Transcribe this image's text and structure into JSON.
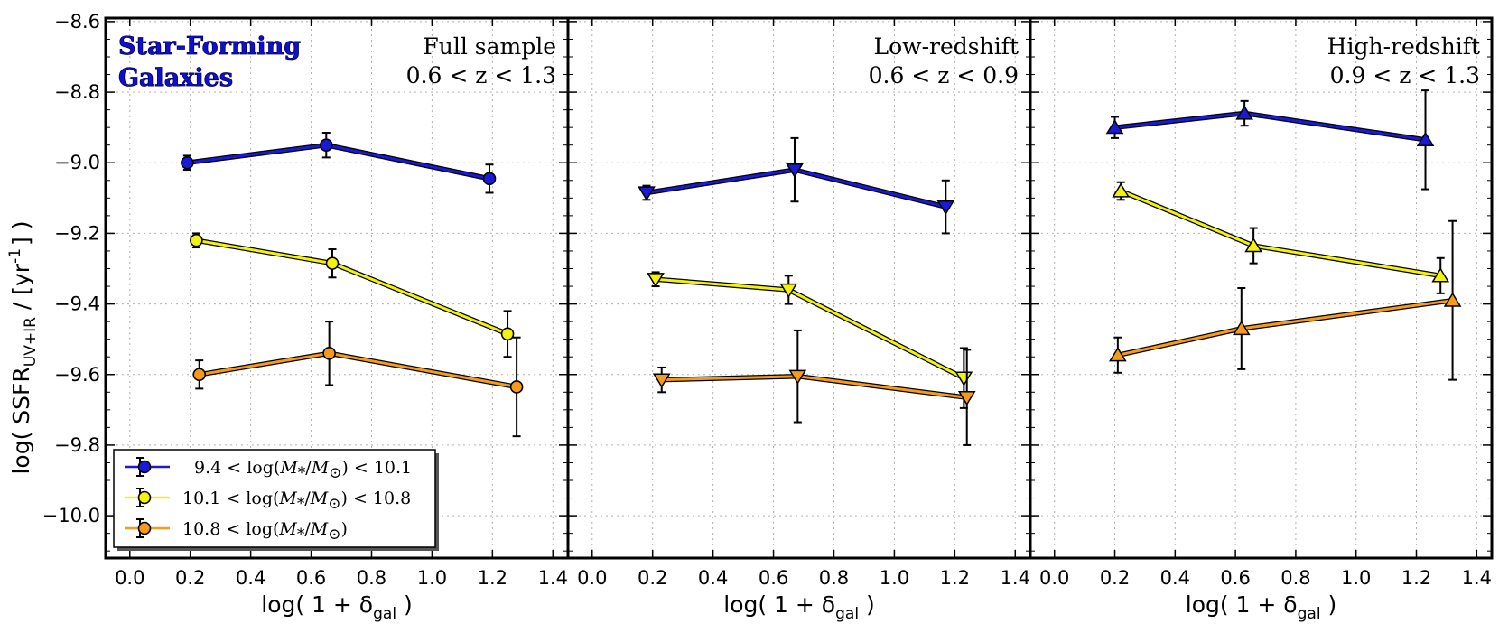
{
  "chart_data": {
    "type": "line",
    "ylabel": "log( SSFR",
    "ylabel_sub": "UV+IR",
    "ylabel_tail": " / [yr",
    "ylabel_sup": "-1",
    "ylabel_end": "] )",
    "xlabel_main": "log( 1 + δ",
    "xlabel_sub": "gal",
    "xlabel_end": " )",
    "ylim": [
      -10.12,
      -8.59
    ],
    "xlim": [
      -0.08,
      1.45
    ],
    "y_ticks": [
      -8.6,
      -8.8,
      -9.0,
      -9.2,
      -9.4,
      -9.6,
      -9.8,
      -10.0
    ],
    "y_tick_labels": [
      "−8.6",
      "−8.8",
      "−9.0",
      "−9.2",
      "−9.4",
      "−9.6",
      "−9.8",
      "−10.0"
    ],
    "x_ticks": [
      0.0,
      0.2,
      0.4,
      0.6,
      0.8,
      1.0,
      1.2,
      1.4
    ],
    "x_tick_labels": [
      "0.0",
      "0.2",
      "0.4",
      "0.6",
      "0.8",
      "1.0",
      "1.2",
      "1.4"
    ],
    "title_line1": "Star-Forming",
    "title_line2": "Galaxies",
    "grid": true,
    "legend": {
      "placement": "lower-left",
      "entries": [
        {
          "name": "blue",
          "pre": "9.4 < log(",
          "math": "M",
          "sub": "*",
          "mid": "/",
          "math2": "M",
          "sub2": "⊙",
          "post": ") < 10.1",
          "color": "#1a1ad6"
        },
        {
          "name": "yellow",
          "pre": "10.1 < log(",
          "math": "M",
          "sub": "*",
          "mid": "/",
          "math2": "M",
          "sub2": "⊙",
          "post": ") < 10.8",
          "color": "#f2f20a"
        },
        {
          "name": "orange",
          "pre": "10.8 < log(",
          "math": "M",
          "sub": "*",
          "mid": "/",
          "math2": "M",
          "sub2": "⊙",
          "post": ")",
          "color": "#f59a1a"
        }
      ]
    },
    "panels": [
      {
        "id": "full",
        "label_line1": "Full sample",
        "label_line2": "0.6 < z < 1.3",
        "marker": "circle",
        "series": [
          {
            "name": "9.4-10.1",
            "color": "#1a1ad6",
            "x": [
              0.19,
              0.65,
              1.19
            ],
            "y": [
              -9.0,
              -8.95,
              -9.045
            ],
            "err": [
              0.02,
              0.035,
              0.04
            ]
          },
          {
            "name": "10.1-10.8",
            "color": "#f2f20a",
            "x": [
              0.22,
              0.67,
              1.25
            ],
            "y": [
              -9.22,
              -9.285,
              -9.485
            ],
            "err": [
              0.02,
              0.04,
              0.065
            ]
          },
          {
            "name": "10.8+",
            "color": "#f59a1a",
            "x": [
              0.23,
              0.66,
              1.28
            ],
            "y": [
              -9.6,
              -9.54,
              -9.635
            ],
            "err": [
              0.04,
              0.09,
              0.14
            ]
          }
        ]
      },
      {
        "id": "low",
        "label_line1": "Low-redshift",
        "label_line2": "0.6 < z < 0.9",
        "marker": "triangle-down",
        "series": [
          {
            "name": "9.4-10.1",
            "color": "#1a1ad6",
            "x": [
              0.18,
              0.67,
              1.17
            ],
            "y": [
              -9.085,
              -9.02,
              -9.125
            ],
            "err": [
              0.02,
              0.09,
              0.075
            ]
          },
          {
            "name": "10.1-10.8",
            "color": "#f2f20a",
            "x": [
              0.21,
              0.65,
              1.23
            ],
            "y": [
              -9.33,
              -9.36,
              -9.61
            ],
            "err": [
              0.02,
              0.04,
              0.085
            ]
          },
          {
            "name": "10.8+",
            "color": "#f59a1a",
            "x": [
              0.23,
              0.68,
              1.24
            ],
            "y": [
              -9.615,
              -9.605,
              -9.665
            ],
            "err": [
              0.035,
              0.13,
              0.135
            ]
          }
        ]
      },
      {
        "id": "high",
        "label_line1": "High-redshift",
        "label_line2": "0.9 < z < 1.3",
        "marker": "triangle-up",
        "series": [
          {
            "name": "9.4-10.1",
            "color": "#1a1ad6",
            "x": [
              0.2,
              0.63,
              1.23
            ],
            "y": [
              -8.9,
              -8.86,
              -8.935
            ],
            "err": [
              0.03,
              0.035,
              0.14
            ]
          },
          {
            "name": "10.1-10.8",
            "color": "#f2f20a",
            "x": [
              0.22,
              0.66,
              1.28
            ],
            "y": [
              -9.08,
              -9.235,
              -9.32
            ],
            "err": [
              0.025,
              0.05,
              0.05
            ]
          },
          {
            "name": "10.8+",
            "color": "#f59a1a",
            "x": [
              0.21,
              0.62,
              1.32
            ],
            "y": [
              -9.545,
              -9.47,
              -9.39
            ],
            "err": [
              0.05,
              0.115,
              0.225
            ]
          }
        ]
      }
    ]
  }
}
